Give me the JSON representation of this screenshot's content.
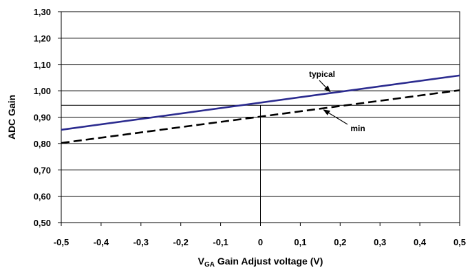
{
  "chart_data": {
    "type": "line",
    "xlabel_main": "V",
    "xlabel_sub": "GA",
    "xlabel_rest": " Gain Adjust voltage (V)",
    "ylabel": "ADC Gain",
    "xlim": [
      -0.5,
      0.5
    ],
    "ylim": [
      0.5,
      1.3
    ],
    "x_ticks": [
      -0.5,
      -0.4,
      -0.3,
      -0.2,
      -0.1,
      0,
      0.1,
      0.2,
      0.3,
      0.4,
      0.5
    ],
    "x_tick_labels": [
      "-0,5",
      "-0,4",
      "-0,3",
      "-0,2",
      "-0,1",
      "0",
      "0,1",
      "0,2",
      "0,3",
      "0,4",
      "0,5"
    ],
    "y_ticks": [
      0.5,
      0.6,
      0.7,
      0.8,
      0.9,
      1.0,
      1.1,
      1.2,
      1.3
    ],
    "y_tick_labels": [
      "0,50",
      "0,60",
      "0,70",
      "0,80",
      "0,90",
      "1,00",
      "1,10",
      "1,20",
      "1,30"
    ],
    "grid": "horizontal",
    "extra_hline": 0.945,
    "extra_vline": 0,
    "series": [
      {
        "name": "typical",
        "style": "solid",
        "color": "#2b2b8f",
        "x": [
          -0.5,
          0.5
        ],
        "y": [
          0.852,
          1.058
        ]
      },
      {
        "name": "min",
        "style": "dashed",
        "color": "#000000",
        "x": [
          -0.5,
          0.5
        ],
        "y": [
          0.802,
          1.002
        ]
      }
    ],
    "annotations": [
      {
        "text": "typical",
        "series": "typical"
      },
      {
        "text": "min",
        "series": "min"
      }
    ]
  }
}
